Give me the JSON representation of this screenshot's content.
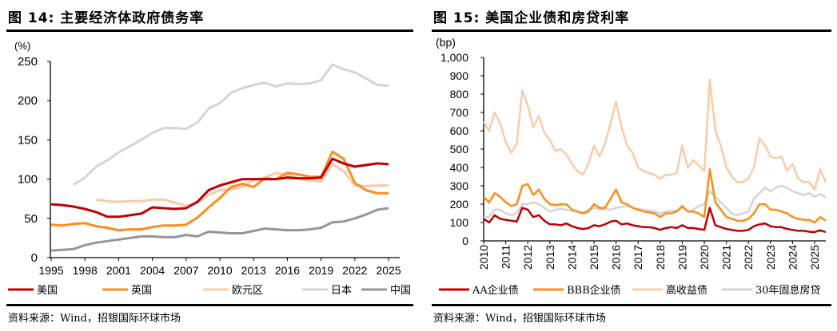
{
  "left": {
    "title": "图 14: 主要经济体政府债务率",
    "source": "资料来源：Wind，招银国际环球市场"
  },
  "right": {
    "title": "图 15: 美国企业债和房贷利率",
    "source": "资料来源：Wind，招银国际环球市场"
  },
  "chart_data": [
    {
      "type": "line",
      "title": "图 14: 主要经济体政府债务率",
      "ylabel": "(%)",
      "ylim": [
        0,
        250
      ],
      "yticks": [
        "0",
        "50",
        "100",
        "150",
        "200",
        "250"
      ],
      "xticks": [
        "1995",
        "1998",
        "2001",
        "2004",
        "2007",
        "2010",
        "2013",
        "2016",
        "2019",
        "2022",
        "2025"
      ],
      "legend": "bottom",
      "x": [
        1995,
        1996,
        1997,
        1998,
        1999,
        2000,
        2001,
        2002,
        2003,
        2004,
        2005,
        2006,
        2007,
        2008,
        2009,
        2010,
        2011,
        2012,
        2013,
        2014,
        2015,
        2016,
        2017,
        2018,
        2019,
        2020,
        2021,
        2022,
        2023,
        2024,
        2025
      ],
      "series": [
        {
          "name": "美国",
          "color": "#c00000",
          "values": [
            68,
            67,
            65,
            62,
            58,
            52,
            52,
            54,
            56,
            64,
            63,
            62,
            63,
            71,
            86,
            92,
            96,
            100,
            100,
            100,
            100,
            102,
            101,
            101,
            102,
            126,
            120,
            116,
            118,
            120,
            119
          ]
        },
        {
          "name": "英国",
          "color": "#ff8c1a",
          "values": [
            42,
            41,
            43,
            44,
            40,
            38,
            35,
            36,
            36,
            39,
            41,
            41,
            42,
            51,
            64,
            76,
            90,
            94,
            90,
            101,
            100,
            108,
            106,
            103,
            103,
            135,
            126,
            95,
            86,
            82,
            82
          ]
        },
        {
          "name": "欧元区",
          "color": "#f9cba8",
          "values": [
            null,
            null,
            null,
            null,
            74,
            72,
            71,
            72,
            72,
            74,
            74,
            70,
            66,
            70,
            80,
            86,
            87,
            90,
            99,
            102,
            108,
            105,
            101,
            98,
            97,
            119,
            110,
            92,
            91,
            92,
            92
          ]
        },
        {
          "name": "日本",
          "color": "#d4d4d4",
          "values": [
            null,
            null,
            93,
            102,
            116,
            124,
            134,
            142,
            150,
            159,
            165,
            165,
            164,
            172,
            190,
            197,
            210,
            216,
            220,
            223,
            218,
            222,
            221,
            222,
            226,
            246,
            240,
            236,
            228,
            220,
            219
          ]
        },
        {
          "name": "中国",
          "color": "#969696",
          "values": [
            9,
            10,
            11,
            16,
            19,
            21,
            23,
            25,
            27,
            27,
            26,
            26,
            29,
            27,
            33,
            32,
            31,
            31,
            34,
            37,
            36,
            35,
            35,
            36,
            38,
            45,
            46,
            50,
            55,
            61,
            63
          ]
        }
      ]
    },
    {
      "type": "line",
      "title": "图 15: 美国企业债和房贷利率",
      "ylabel": "(bp)",
      "ylim": [
        0,
        1000
      ],
      "yticks": [
        "0",
        "100",
        "200",
        "300",
        "400",
        "500",
        "600",
        "700",
        "800",
        "900",
        "1,000"
      ],
      "xticks": [
        "2010",
        "2011",
        "2012",
        "2013",
        "2014",
        "2015",
        "2016",
        "2017",
        "2018",
        "2019",
        "2020",
        "2021",
        "2022",
        "2023",
        "2024",
        "2025"
      ],
      "legend": "bottom",
      "x_start": 2010,
      "x_step_years": 0.25,
      "series": [
        {
          "name": "AA企业债",
          "color": "#c00000",
          "values": [
            120,
            100,
            140,
            120,
            115,
            110,
            105,
            180,
            170,
            130,
            140,
            110,
            90,
            90,
            85,
            95,
            80,
            70,
            65,
            70,
            85,
            80,
            90,
            105,
            110,
            90,
            95,
            85,
            80,
            75,
            75,
            70,
            60,
            70,
            75,
            70,
            85,
            70,
            70,
            65,
            60,
            180,
            85,
            75,
            65,
            60,
            55,
            55,
            60,
            80,
            90,
            95,
            80,
            75,
            75,
            65,
            60,
            55,
            55,
            50,
            48,
            58,
            48
          ]
        },
        {
          "name": "BBB企业债",
          "color": "#ff8c1a",
          "values": [
            240,
            210,
            260,
            240,
            210,
            190,
            200,
            300,
            310,
            250,
            280,
            230,
            200,
            195,
            200,
            200,
            170,
            160,
            150,
            160,
            200,
            180,
            180,
            230,
            280,
            210,
            200,
            180,
            170,
            160,
            155,
            150,
            130,
            150,
            150,
            160,
            190,
            160,
            160,
            150,
            130,
            390,
            210,
            170,
            130,
            120,
            110,
            110,
            120,
            150,
            200,
            200,
            170,
            170,
            160,
            150,
            130,
            120,
            115,
            115,
            100,
            130,
            110
          ]
        },
        {
          "name": "高收益债",
          "color": "#f9cba8",
          "values": [
            650,
            600,
            700,
            640,
            540,
            480,
            530,
            820,
            740,
            620,
            680,
            590,
            550,
            490,
            500,
            470,
            420,
            380,
            360,
            420,
            520,
            460,
            530,
            640,
            760,
            620,
            520,
            480,
            400,
            380,
            370,
            360,
            340,
            360,
            360,
            370,
            520,
            400,
            440,
            410,
            380,
            880,
            600,
            520,
            400,
            350,
            320,
            320,
            340,
            400,
            560,
            520,
            460,
            450,
            460,
            380,
            420,
            340,
            320,
            320,
            280,
            390,
            320
          ]
        },
        {
          "name": "30年固息房贷",
          "color": "#d4d4d4",
          "values": [
            130,
            130,
            170,
            170,
            150,
            140,
            150,
            200,
            200,
            210,
            200,
            180,
            160,
            170,
            175,
            170,
            165,
            160,
            155,
            170,
            180,
            170,
            175,
            170,
            180,
            185,
            190,
            180,
            175,
            170,
            165,
            160,
            150,
            160,
            165,
            165,
            180,
            160,
            170,
            190,
            200,
            270,
            240,
            210,
            180,
            150,
            140,
            150,
            160,
            230,
            260,
            290,
            270,
            290,
            300,
            290,
            270,
            260,
            250,
            260,
            240,
            255,
            235
          ]
        }
      ]
    }
  ]
}
